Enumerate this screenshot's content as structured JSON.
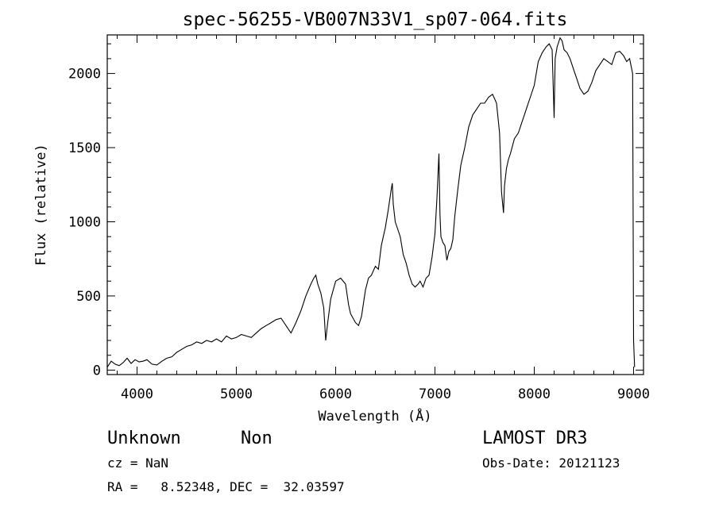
{
  "chart_data": {
    "type": "line",
    "title": "spec-56255-VB007N33V1_sp07-064.fits",
    "xlabel": "Wavelength (Å)",
    "ylabel": "Flux (relative)",
    "xlim": [
      3700,
      9100
    ],
    "ylim": [
      -30,
      2260
    ],
    "xticks": [
      4000,
      5000,
      6000,
      7000,
      8000,
      9000
    ],
    "yticks": [
      0,
      500,
      1000,
      1500,
      2000
    ],
    "series": [
      {
        "name": "flux",
        "x": [
          3700,
          3740,
          3780,
          3820,
          3860,
          3900,
          3940,
          3980,
          4020,
          4060,
          4100,
          4150,
          4200,
          4250,
          4300,
          4350,
          4400,
          4450,
          4500,
          4550,
          4600,
          4650,
          4700,
          4750,
          4800,
          4850,
          4900,
          4950,
          5000,
          5050,
          5100,
          5150,
          5200,
          5250,
          5300,
          5350,
          5400,
          5450,
          5500,
          5550,
          5600,
          5650,
          5700,
          5750,
          5780,
          5800,
          5820,
          5850,
          5880,
          5900,
          5920,
          5950,
          6000,
          6050,
          6100,
          6130,
          6150,
          6200,
          6230,
          6260,
          6300,
          6330,
          6360,
          6400,
          6430,
          6460,
          6500,
          6530,
          6560,
          6570,
          6580,
          6600,
          6620,
          6650,
          6680,
          6710,
          6740,
          6770,
          6800,
          6830,
          6850,
          6880,
          6910,
          6940,
          6970,
          7000,
          7020,
          7040,
          7050,
          7060,
          7080,
          7100,
          7120,
          7140,
          7160,
          7180,
          7200,
          7230,
          7260,
          7300,
          7340,
          7380,
          7420,
          7460,
          7500,
          7540,
          7580,
          7620,
          7650,
          7670,
          7690,
          7700,
          7720,
          7740,
          7760,
          7800,
          7840,
          7880,
          7920,
          7960,
          8000,
          8040,
          8080,
          8120,
          8150,
          8180,
          8200,
          8210,
          8230,
          8260,
          8280,
          8300,
          8330,
          8360,
          8400,
          8430,
          8460,
          8500,
          8540,
          8580,
          8620,
          8660,
          8700,
          8740,
          8780,
          8820,
          8860,
          8900,
          8930,
          8960,
          8990,
          9000,
          9010
        ],
        "y": [
          20,
          60,
          40,
          30,
          50,
          80,
          45,
          70,
          55,
          60,
          70,
          40,
          35,
          60,
          80,
          90,
          120,
          140,
          160,
          170,
          190,
          180,
          200,
          190,
          210,
          190,
          230,
          210,
          220,
          240,
          230,
          220,
          250,
          280,
          300,
          320,
          340,
          350,
          300,
          250,
          320,
          400,
          500,
          580,
          620,
          640,
          580,
          520,
          420,
          200,
          320,
          480,
          600,
          620,
          580,
          440,
          380,
          320,
          300,
          360,
          540,
          620,
          640,
          700,
          680,
          840,
          960,
          1080,
          1220,
          1260,
          1120,
          1000,
          960,
          900,
          780,
          720,
          640,
          580,
          560,
          580,
          600,
          560,
          620,
          640,
          760,
          920,
          1160,
          1460,
          1050,
          900,
          860,
          840,
          740,
          800,
          820,
          880,
          1040,
          1220,
          1380,
          1500,
          1640,
          1720,
          1760,
          1800,
          1800,
          1840,
          1860,
          1800,
          1600,
          1200,
          1060,
          1240,
          1360,
          1420,
          1460,
          1560,
          1600,
          1680,
          1760,
          1840,
          1920,
          2080,
          2140,
          2180,
          2200,
          2160,
          1700,
          2100,
          2180,
          2240,
          2220,
          2160,
          2140,
          2100,
          2020,
          1960,
          1900,
          1860,
          1880,
          1940,
          2020,
          2060,
          2100,
          2080,
          2060,
          2140,
          2150,
          2120,
          2080,
          2100,
          2000,
          200,
          20
        ]
      }
    ],
    "annotations": {
      "object_class": "Unknown",
      "subclass": "Non",
      "cz": "cz = NaN",
      "radec": "RA =   8.52348, DEC =  32.03597",
      "survey": "LAMOST DR3",
      "obs_date": "Obs-Date: 20121123"
    },
    "line_color": "#000000"
  }
}
